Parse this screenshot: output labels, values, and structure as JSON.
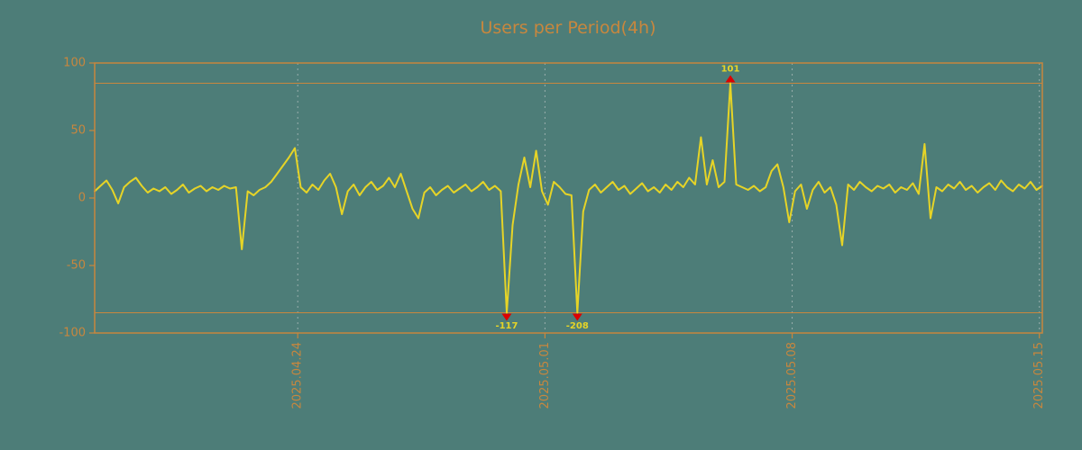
{
  "colors": {
    "background": "#4d7d78",
    "accent": "#c8873e",
    "line": "#e6d427",
    "marker": "#dd0000",
    "marker_label": "#e6d427",
    "grid": "#d8d8d8"
  },
  "chart_data": {
    "type": "line",
    "title": "Users per Period(4h)",
    "ylim": [
      -100,
      100
    ],
    "yticks": [
      100,
      50,
      0,
      -50,
      -100
    ],
    "ytick_labels": [
      "100",
      "50",
      "0",
      "-50",
      "-100"
    ],
    "xticks": [
      {
        "index": 34.5,
        "label": "2025.04.24"
      },
      {
        "index": 76.5,
        "label": "2025.05.01"
      },
      {
        "index": 118.5,
        "label": "2025.05.08"
      },
      {
        "index": 160.5,
        "label": "2025.05.15"
      }
    ],
    "grid": "vertical-dashed",
    "legend": null,
    "thresholds": [
      85,
      -85
    ],
    "clip": 85,
    "values": [
      5,
      9,
      13,
      6,
      -4,
      8,
      12,
      15,
      9,
      4,
      7,
      5,
      8,
      3,
      6,
      10,
      4,
      7,
      9,
      5,
      8,
      6,
      9,
      7,
      8,
      -38,
      5,
      2,
      6,
      8,
      12,
      18,
      24,
      30,
      37,
      8,
      4,
      10,
      6,
      13,
      18,
      8,
      -12,
      5,
      10,
      2,
      8,
      12,
      6,
      9,
      15,
      8,
      18,
      5,
      -8,
      -15,
      4,
      8,
      2,
      6,
      9,
      4,
      7,
      10,
      5,
      8,
      12,
      6,
      9,
      5,
      -117,
      -20,
      10,
      30,
      8,
      35,
      5,
      -5,
      12,
      8,
      3,
      2,
      -208,
      -10,
      6,
      10,
      4,
      8,
      12,
      6,
      9,
      3,
      7,
      11,
      5,
      8,
      4,
      10,
      6,
      12,
      8,
      15,
      10,
      45,
      10,
      28,
      8,
      12,
      101,
      10,
      8,
      6,
      9,
      5,
      8,
      20,
      25,
      8,
      -18,
      5,
      10,
      -8,
      6,
      12,
      4,
      8,
      -5,
      -35,
      10,
      6,
      12,
      8,
      5,
      9,
      7,
      10,
      4,
      8,
      6,
      11,
      3,
      40,
      -15,
      8,
      5,
      10,
      7,
      12,
      6,
      9,
      4,
      8,
      11,
      6,
      13,
      8,
      5,
      10,
      7,
      12,
      6,
      9
    ],
    "annotations": [
      {
        "index": 70,
        "value": -117,
        "label": "-117",
        "direction": "down"
      },
      {
        "index": 82,
        "value": -208,
        "label": "-208",
        "direction": "down"
      },
      {
        "index": 108,
        "value": 101,
        "label": "101",
        "direction": "up"
      }
    ]
  }
}
